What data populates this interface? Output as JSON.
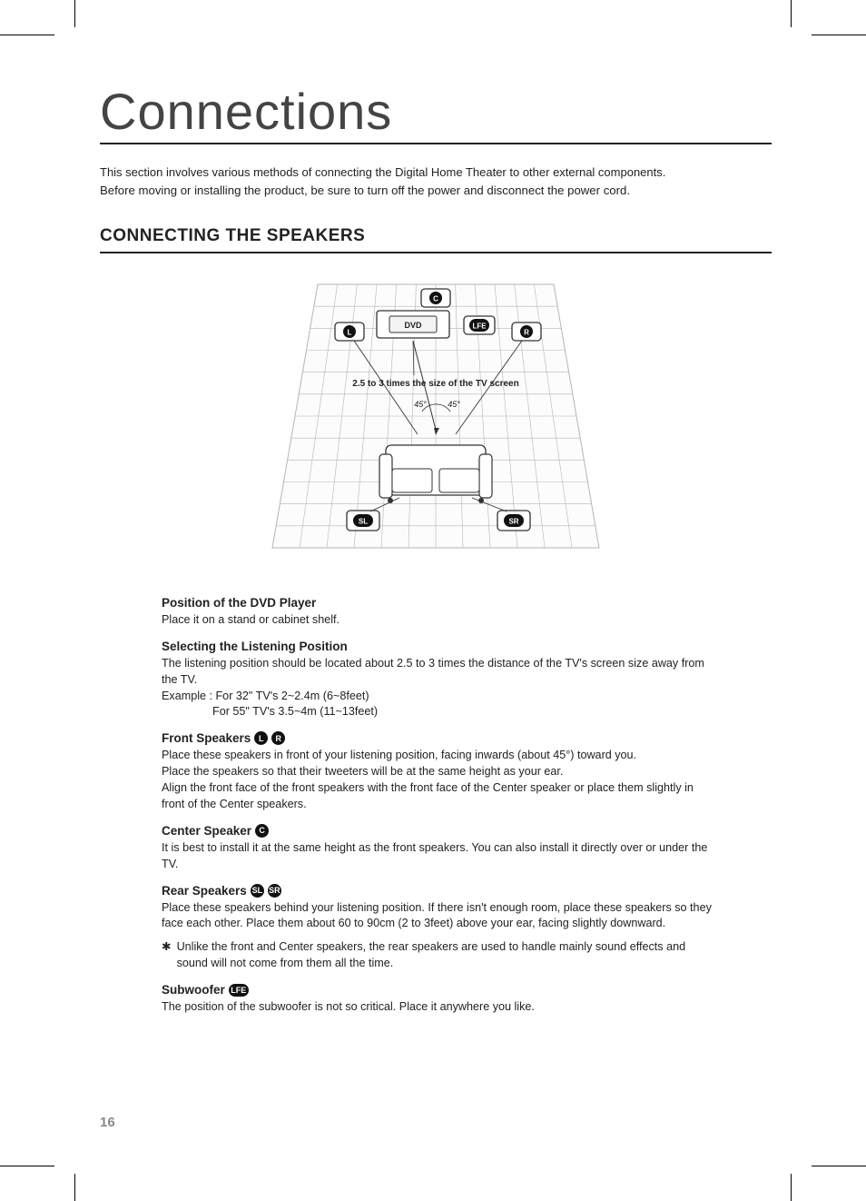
{
  "pageNumber": "16",
  "title": "Connections",
  "intro": {
    "line1": "This section involves various methods of connecting the Digital Home Theater to other external components.",
    "line2": "Before moving or installing the product, be sure to turn off the power and disconnect the power cord."
  },
  "section": "CONNECTING THE SPEAKERS",
  "diagram": {
    "type": "diagram",
    "background_color": "#ffffff",
    "grid_color": "#b5b5b5",
    "box_fill": "#ffffff",
    "box_stroke": "#333333",
    "line_color": "#333333",
    "badge_bg": "#111111",
    "badge_fg": "#ffffff",
    "labels": {
      "C": "C",
      "L": "L",
      "R": "R",
      "LFE": "LFE",
      "SL": "SL",
      "SR": "SR",
      "DVD": "DVD"
    },
    "caption": "2.5 to 3 times the size of the TV screen",
    "angle": "45°",
    "grid_rows": 12,
    "grid_cols": 12
  },
  "blocks": {
    "dvd": {
      "heading": "Position of the DVD Player",
      "p1": "Place it on a stand or cabinet shelf."
    },
    "listening": {
      "heading": "Selecting the Listening Position",
      "p1": "The listening position should be located about 2.5 to 3 times the distance of the TV's screen size away from the TV.",
      "p2": "Example : For 32\" TV's 2~2.4m (6~8feet)",
      "p3": "For 55\" TV's 3.5~4m (11~13feet)"
    },
    "front": {
      "heading": "Front Speakers",
      "badges": {
        "L": "L",
        "R": "R"
      },
      "p1": "Place these speakers in front of your listening position, facing inwards (about 45°) toward you.",
      "p2": "Place the speakers so that their tweeters will be at the same height as your ear.",
      "p3": "Align the front face of the front speakers with the front face of the Center speaker or place them slightly in front of the Center speakers."
    },
    "center": {
      "heading": "Center Speaker",
      "badge": "C",
      "p1": "It is best to install it at the same height as the front speakers. You can also install it directly over or under the TV."
    },
    "rear": {
      "heading": "Rear Speakers",
      "badges": {
        "SL": "SL",
        "SR": "SR"
      },
      "p1": "Place these speakers behind your listening position. If there isn't enough room, place these speakers so they face each other. Place them about 60 to 90cm (2 to 3feet) above your ear, facing slightly downward.",
      "note": "Unlike the front and Center speakers, the rear speakers are used to handle mainly sound effects and sound will not come from them all the time."
    },
    "sub": {
      "heading": "Subwoofer",
      "badge": "LFE",
      "p1": "The position of the subwoofer is not so critical. Place it anywhere you like."
    }
  }
}
